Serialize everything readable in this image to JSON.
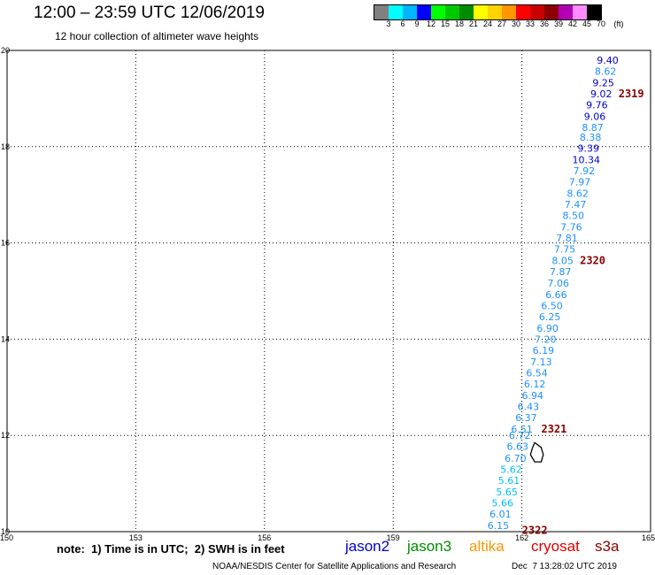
{
  "header": {
    "title": "12:00 – 23:59 UTC 12/06/2019",
    "subtitle": "12 hour collection of altimeter wave heights"
  },
  "legend": {
    "colors": [
      "#808080",
      "#00ffff",
      "#00b4ff",
      "#0000ff",
      "#00ff00",
      "#00c800",
      "#008c00",
      "#ffff00",
      "#ffd200",
      "#ff9600",
      "#ff0000",
      "#c80000",
      "#8c0000",
      "#b400b4",
      "#ff8cff",
      "#000000"
    ],
    "labels": [
      "3",
      "6",
      "9",
      "12",
      "15",
      "18",
      "21",
      "24",
      "27",
      "30",
      "33",
      "36",
      "39",
      "42",
      "45",
      "70",
      "(ft)"
    ]
  },
  "chart_data": {
    "type": "scatter",
    "xlim": [
      150,
      165
    ],
    "ylim": [
      10,
      20
    ],
    "x_ticks": [
      "150",
      "153",
      "156",
      "159",
      "162",
      "165"
    ],
    "y_ticks": [
      "10",
      "12",
      "14",
      "16",
      "18",
      "20"
    ],
    "grid": "dotted",
    "points": [
      {
        "lon": 164.0,
        "lat": 19.8,
        "label": "9.40",
        "color": "#0000cd"
      },
      {
        "lon": 163.95,
        "lat": 19.57,
        "label": "8.62",
        "color": "#1e90ff"
      },
      {
        "lon": 163.9,
        "lat": 19.33,
        "label": "9.25",
        "color": "#0000cd"
      },
      {
        "lon": 163.85,
        "lat": 19.1,
        "label": "9.02",
        "color": "#0000cd"
      },
      {
        "lon": 163.75,
        "lat": 18.87,
        "label": "9.76",
        "color": "#0000cd"
      },
      {
        "lon": 163.7,
        "lat": 18.63,
        "label": "9.06",
        "color": "#0000cd"
      },
      {
        "lon": 163.65,
        "lat": 18.4,
        "label": "8.87",
        "color": "#1e90ff"
      },
      {
        "lon": 163.6,
        "lat": 18.2,
        "label": "8.38",
        "color": "#1e90ff"
      },
      {
        "lon": 163.55,
        "lat": 17.97,
        "label": "9.39",
        "color": "#0000cd"
      },
      {
        "lon": 163.5,
        "lat": 17.73,
        "label": "10.34",
        "color": "#0000cd"
      },
      {
        "lon": 163.45,
        "lat": 17.5,
        "label": "7.92",
        "color": "#1e90ff"
      },
      {
        "lon": 163.35,
        "lat": 17.27,
        "label": "7.97",
        "color": "#1e90ff"
      },
      {
        "lon": 163.3,
        "lat": 17.03,
        "label": "8.62",
        "color": "#1e90ff"
      },
      {
        "lon": 163.25,
        "lat": 16.8,
        "label": "7.47",
        "color": "#1e90ff"
      },
      {
        "lon": 163.2,
        "lat": 16.57,
        "label": "8.50",
        "color": "#1e90ff"
      },
      {
        "lon": 163.15,
        "lat": 16.33,
        "label": "7.76",
        "color": "#1e90ff"
      },
      {
        "lon": 163.05,
        "lat": 16.1,
        "label": "7.81",
        "color": "#1e90ff"
      },
      {
        "lon": 163.0,
        "lat": 15.87,
        "label": "7.75",
        "color": "#1e90ff"
      },
      {
        "lon": 162.95,
        "lat": 15.63,
        "label": "8.05",
        "color": "#1e90ff"
      },
      {
        "lon": 162.9,
        "lat": 15.4,
        "label": "7.87",
        "color": "#1e90ff"
      },
      {
        "lon": 162.85,
        "lat": 15.17,
        "label": "7.06",
        "color": "#1e90ff"
      },
      {
        "lon": 162.8,
        "lat": 14.93,
        "label": "6.66",
        "color": "#1e90ff"
      },
      {
        "lon": 162.7,
        "lat": 14.7,
        "label": "6.50",
        "color": "#1e90ff"
      },
      {
        "lon": 162.65,
        "lat": 14.47,
        "label": "6.25",
        "color": "#1e90ff"
      },
      {
        "lon": 162.6,
        "lat": 14.23,
        "label": "6.90",
        "color": "#1e90ff"
      },
      {
        "lon": 162.55,
        "lat": 14.0,
        "label": "7.20",
        "color": "#1e90ff"
      },
      {
        "lon": 162.5,
        "lat": 13.77,
        "label": "6.19",
        "color": "#1e90ff"
      },
      {
        "lon": 162.45,
        "lat": 13.53,
        "label": "7.13",
        "color": "#1e90ff"
      },
      {
        "lon": 162.35,
        "lat": 13.3,
        "label": "6.54",
        "color": "#1e90ff"
      },
      {
        "lon": 162.3,
        "lat": 13.07,
        "label": "6.12",
        "color": "#1e90ff"
      },
      {
        "lon": 162.25,
        "lat": 12.83,
        "label": "6.94",
        "color": "#1e90ff"
      },
      {
        "lon": 162.15,
        "lat": 12.6,
        "label": "6.43",
        "color": "#1e90ff"
      },
      {
        "lon": 162.1,
        "lat": 12.37,
        "label": "6.37",
        "color": "#1e90ff"
      },
      {
        "lon": 162.0,
        "lat": 12.13,
        "label": "6.51",
        "color": "#1e90ff"
      },
      {
        "lon": 161.95,
        "lat": 12.0,
        "label": "6.72",
        "color": "#1e90ff"
      },
      {
        "lon": 161.9,
        "lat": 11.77,
        "label": "6.63",
        "color": "#1e90ff"
      },
      {
        "lon": 161.85,
        "lat": 11.53,
        "label": "6.70",
        "color": "#1e90ff"
      },
      {
        "lon": 161.75,
        "lat": 11.3,
        "label": "5.62",
        "color": "#00bfff"
      },
      {
        "lon": 161.7,
        "lat": 11.07,
        "label": "5.61",
        "color": "#00bfff"
      },
      {
        "lon": 161.65,
        "lat": 10.83,
        "label": "5.65",
        "color": "#00bfff"
      },
      {
        "lon": 161.55,
        "lat": 10.6,
        "label": "5.66",
        "color": "#00bfff"
      },
      {
        "lon": 161.5,
        "lat": 10.37,
        "label": "6.01",
        "color": "#1e90ff"
      },
      {
        "lon": 161.45,
        "lat": 10.13,
        "label": "6.15",
        "color": "#1e90ff"
      }
    ],
    "time_labels": [
      {
        "lon": 164.55,
        "lat": 19.1,
        "label": "2319"
      },
      {
        "lon": 163.65,
        "lat": 15.63,
        "label": "2320"
      },
      {
        "lon": 162.75,
        "lat": 12.13,
        "label": "2321"
      },
      {
        "lon": 162.3,
        "lat": 10.03,
        "label": "2322"
      }
    ],
    "island_outline": [
      [
        162.3,
        11.85
      ],
      [
        162.45,
        11.75
      ],
      [
        162.5,
        11.6
      ],
      [
        162.45,
        11.45
      ],
      [
        162.3,
        11.45
      ],
      [
        162.2,
        11.6
      ],
      [
        162.25,
        11.75
      ],
      [
        162.3,
        11.85
      ]
    ]
  },
  "note": "note:  1) Time is in UTC;  2) SWH is in feet",
  "satellites": [
    {
      "name": "jason2",
      "color": "#0000cd"
    },
    {
      "name": "jason3",
      "color": "#008c00"
    },
    {
      "name": "altika",
      "color": "#ff9600"
    },
    {
      "name": "cryosat",
      "color": "#dc0000"
    },
    {
      "name": "s3a",
      "color": "#8c0000"
    }
  ],
  "footer": {
    "center": "NOAA/NESDIS Center for Satellite Applications and Research",
    "timestamp": "Dec  7 13:28:02 UTC 2019"
  }
}
